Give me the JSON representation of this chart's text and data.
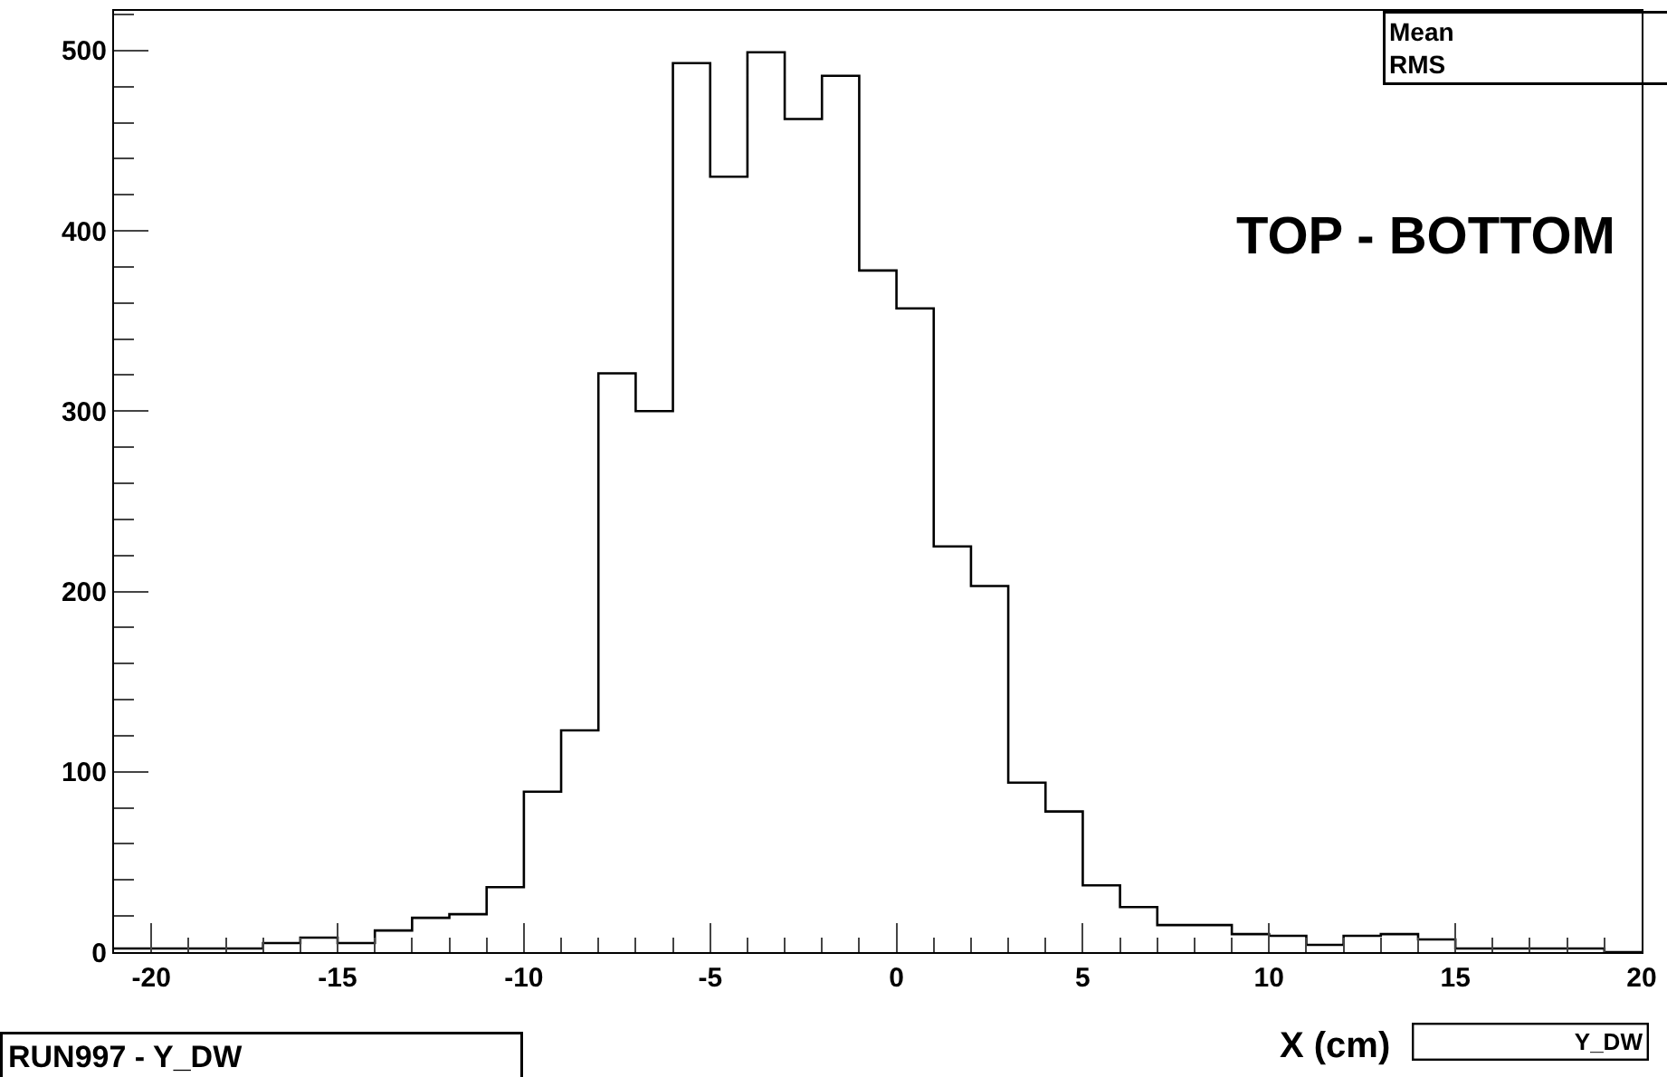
{
  "chart_data": {
    "type": "histogram",
    "title": "RUN997 - Y_DW",
    "xlabel": "X (cm)",
    "bins": [
      -21,
      -20,
      -19,
      -18,
      -17,
      -16,
      -15,
      -14,
      -13,
      -12,
      -11,
      -10,
      -9,
      -8,
      -7,
      -6,
      -5,
      -4,
      -3,
      -2,
      -1,
      0,
      1,
      2,
      3,
      4,
      5,
      6,
      7,
      8,
      9,
      10,
      11,
      12,
      13,
      14,
      15,
      16,
      17,
      18,
      19,
      20
    ],
    "values": [
      2,
      2,
      2,
      2,
      5,
      8,
      5,
      12,
      19,
      21,
      36,
      89,
      123,
      321,
      300,
      493,
      430,
      499,
      462,
      486,
      378,
      357,
      225,
      203,
      94,
      78,
      37,
      25,
      15,
      15,
      10,
      9,
      4,
      9,
      10,
      7,
      2,
      2,
      2,
      2,
      0
    ],
    "color": "#000000",
    "xlim": [
      -21,
      20
    ],
    "xticks": [
      -20,
      -15,
      -10,
      -5,
      0,
      5,
      10,
      15,
      20
    ],
    "ylim": [
      0,
      522
    ],
    "yticks": [
      0,
      100,
      200,
      300,
      400,
      500
    ],
    "annotations": [
      "TOP - BOTTOM",
      "Mean",
      "RMS",
      "Y_DW"
    ]
  }
}
